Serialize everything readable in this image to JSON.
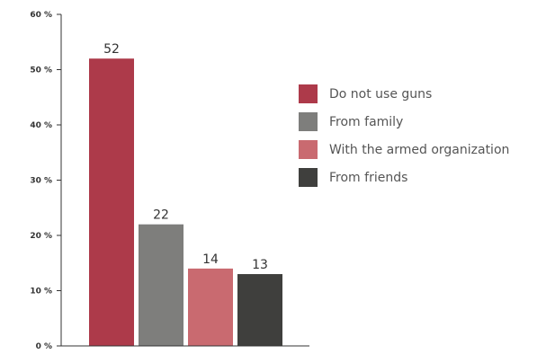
{
  "chart_data": {
    "type": "bar",
    "title": "",
    "xlabel": "",
    "ylabel": "",
    "ylim": [
      0,
      60
    ],
    "yticks": [
      0,
      10,
      20,
      30,
      40,
      50,
      60
    ],
    "ytick_labels": [
      "0 %",
      "10 %",
      "20 %",
      "30 %",
      "40 %",
      "50 %",
      "60 %"
    ],
    "grid": false,
    "legend_position": "right",
    "categories": [
      "Do not use guns",
      "From family",
      "With the armed organization",
      "From friends"
    ],
    "values": [
      52,
      22,
      14,
      13
    ],
    "data_labels": [
      "52",
      "22",
      "14",
      "13"
    ],
    "colors": [
      "#ad3a4a",
      "#7e7e7c",
      "#c96a70",
      "#3f3f3d"
    ]
  }
}
